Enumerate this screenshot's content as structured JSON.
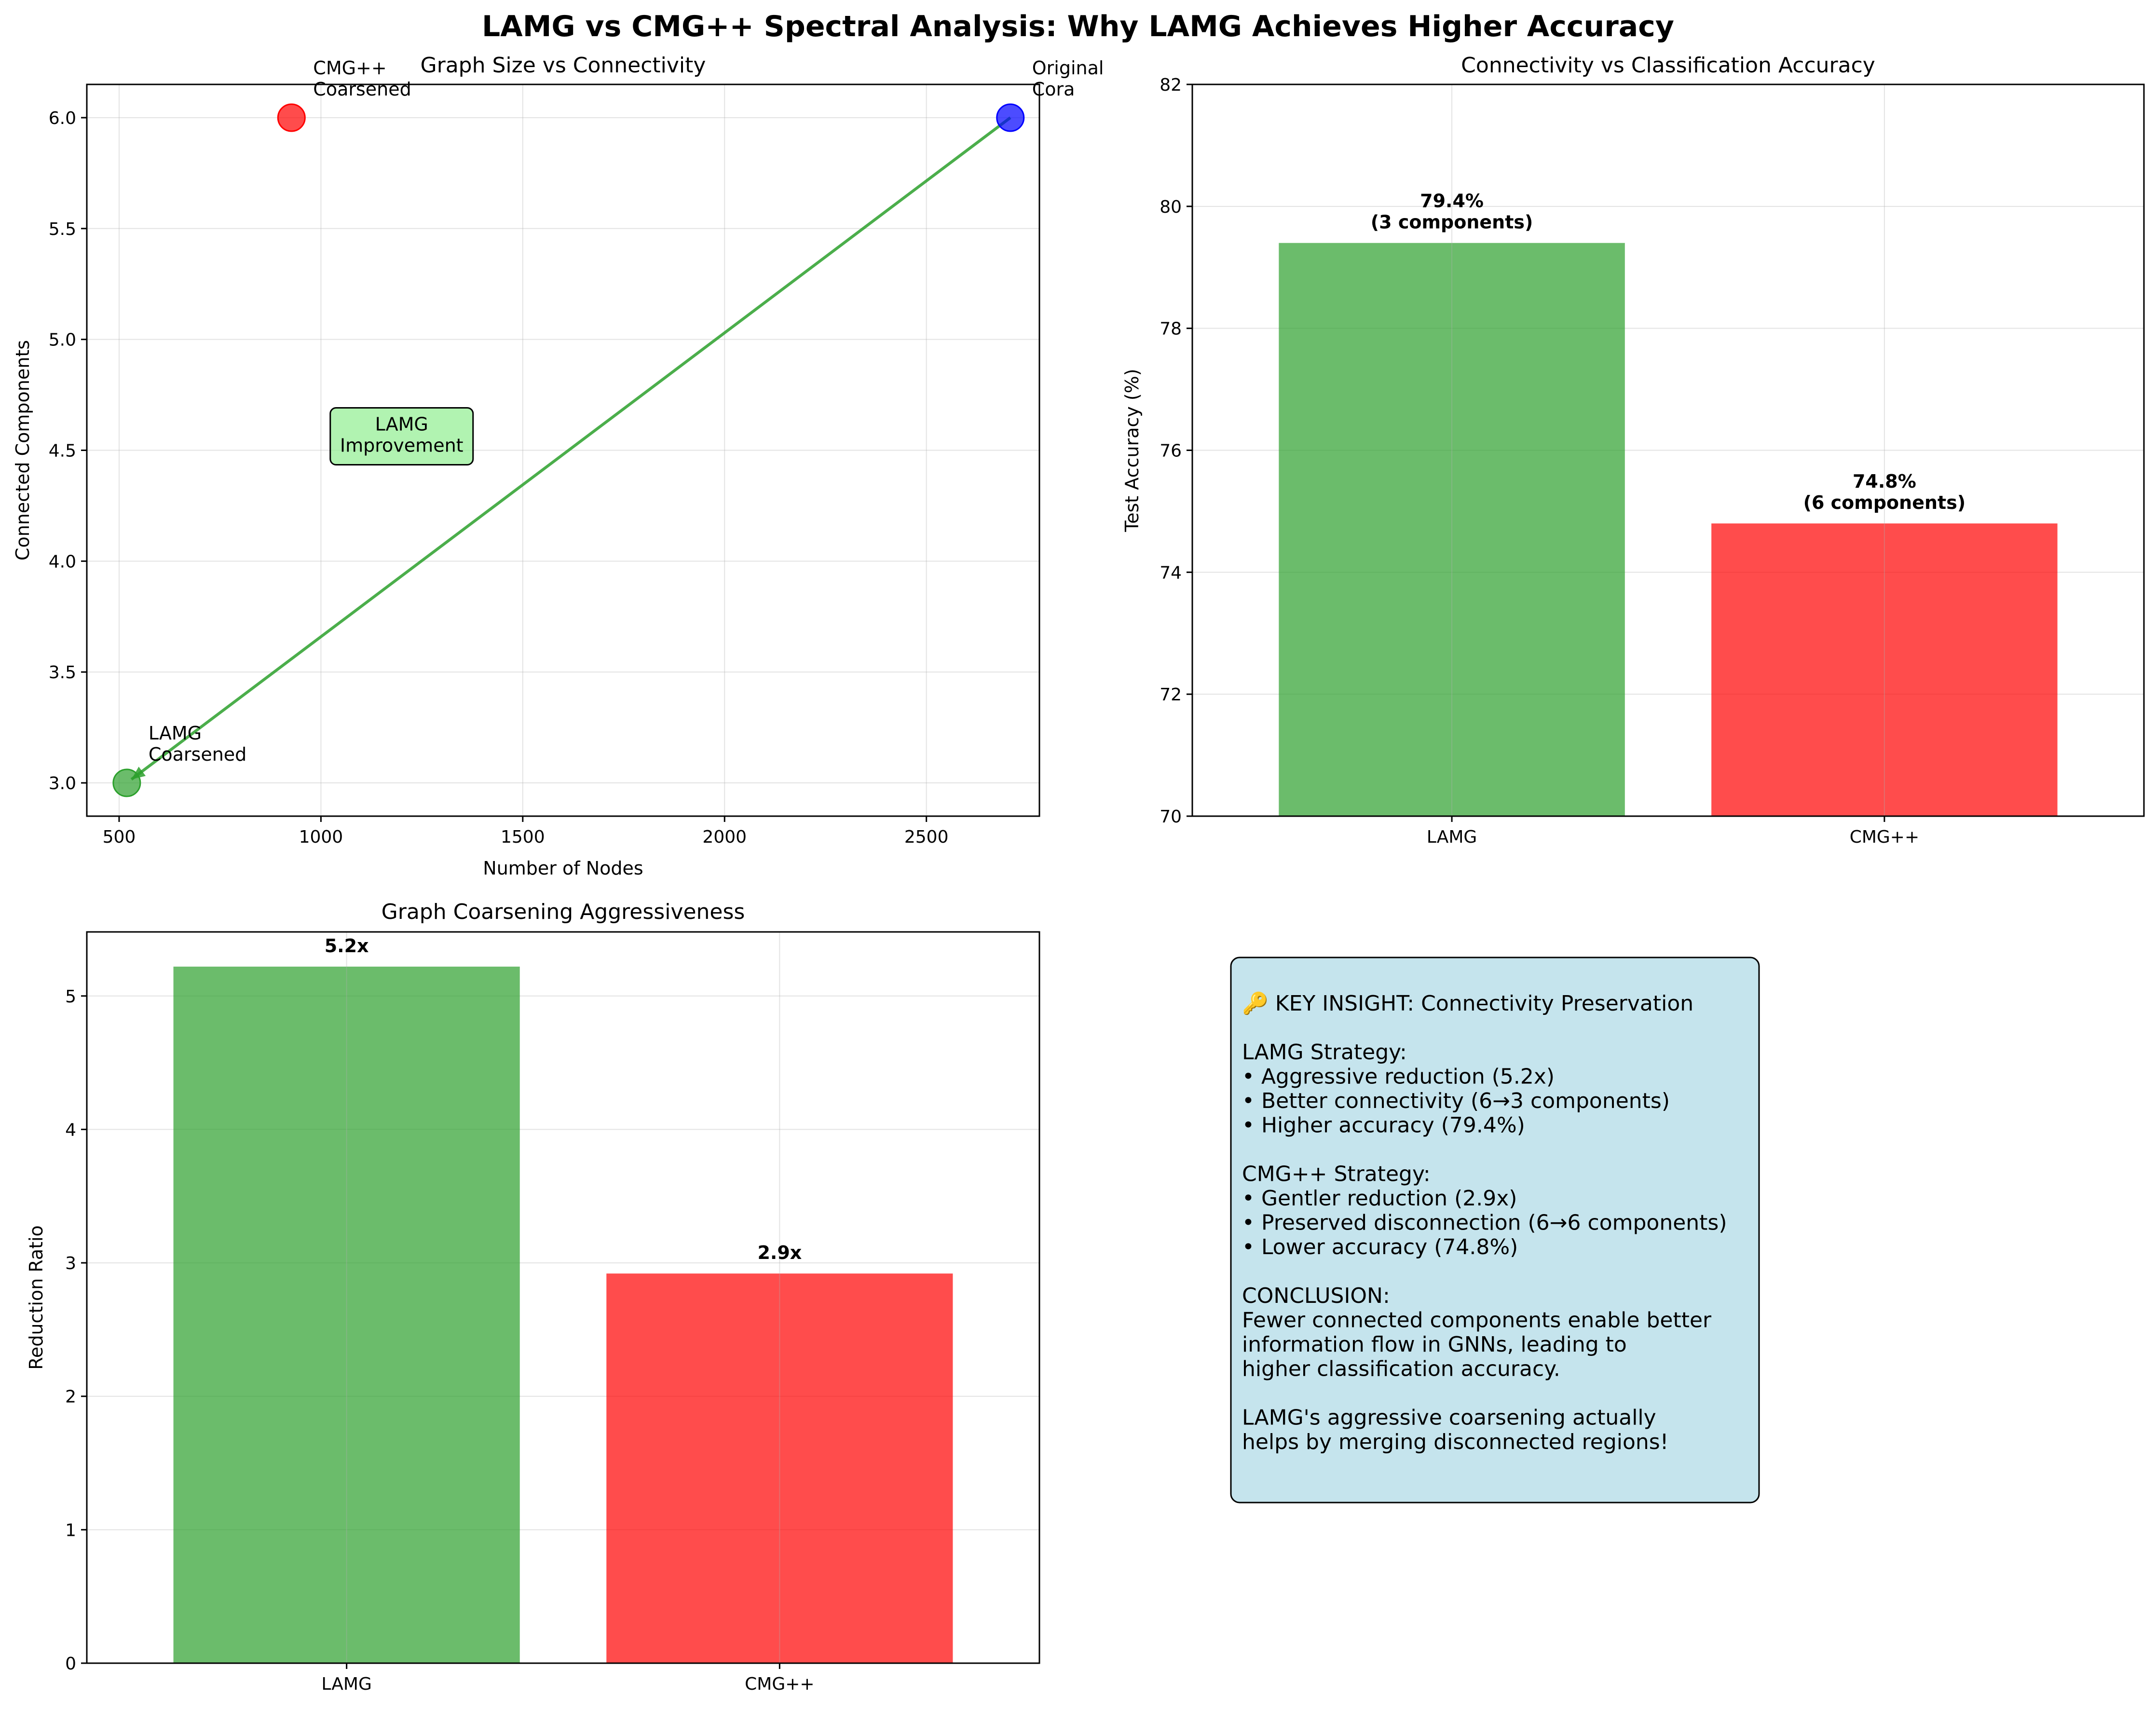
{
  "title": "LAMG vs CMG++ Spectral Analysis: Why LAMG Achieves Higher Accuracy",
  "colors": {
    "lamg": "#2ca02c",
    "cmg": "#ff0000",
    "original": "#0000ff",
    "insight_bg": "#add8e6",
    "annotation_bg": "#90ee90"
  },
  "chart_data": [
    {
      "type": "scatter",
      "title": "Graph Size vs Connectivity",
      "xlabel": "Number of Nodes",
      "ylabel": "Connected Components",
      "xlim": [
        420,
        2780
      ],
      "ylim": [
        2.85,
        6.15
      ],
      "xticks": [
        500,
        1000,
        1500,
        2000,
        2500
      ],
      "yticks": [
        3.0,
        3.5,
        4.0,
        4.5,
        5.0,
        5.5,
        6.0
      ],
      "points": [
        {
          "label": "Original\nCora",
          "x": 2708,
          "y": 6,
          "color": "original"
        },
        {
          "label": "LAMG\nCoarsened",
          "x": 519,
          "y": 3,
          "color": "lamg"
        },
        {
          "label": "CMG++\nCoarsened",
          "x": 927,
          "y": 6,
          "color": "cmg"
        }
      ],
      "arrow": {
        "from": [
          2708,
          6
        ],
        "to": [
          519,
          3
        ]
      },
      "annotation": {
        "text": "LAMG\nImprovement",
        "x": 1200,
        "y": 4.55
      }
    },
    {
      "type": "bar",
      "title": "Connectivity vs Classification Accuracy",
      "xlabel": "",
      "ylabel": "Test Accuracy (%)",
      "categories": [
        "LAMG",
        "CMG++"
      ],
      "values": [
        79.4,
        74.8
      ],
      "labels": [
        "79.4%\n(3 components)",
        "74.8%\n(6 components)"
      ],
      "colors": [
        "lamg",
        "cmg"
      ],
      "ylim": [
        70,
        82
      ],
      "yticks": [
        70,
        72,
        74,
        76,
        78,
        80,
        82
      ]
    },
    {
      "type": "bar",
      "title": "Graph Coarsening Aggressiveness",
      "xlabel": "",
      "ylabel": "Reduction Ratio",
      "categories": [
        "LAMG",
        "CMG++"
      ],
      "values": [
        5.22,
        2.92
      ],
      "labels": [
        "5.2x",
        "2.9x"
      ],
      "colors": [
        "lamg",
        "cmg"
      ],
      "ylim": [
        0,
        5.48
      ],
      "yticks": [
        0,
        1,
        2,
        3,
        4,
        5
      ]
    }
  ],
  "insight": {
    "lines": [
      "🔑 KEY INSIGHT: Connectivity Preservation",
      "",
      "LAMG Strategy:",
      "• Aggressive reduction (5.2x)",
      "• Better connectivity (6→3 components)",
      "• Higher accuracy (79.4%)",
      "",
      "CMG++ Strategy:",
      "• Gentler reduction (2.9x)",
      "• Preserved disconnection (6→6 components)",
      "• Lower accuracy (74.8%)",
      "",
      "CONCLUSION:",
      "Fewer connected components enable better",
      "information flow in GNNs, leading to",
      "higher classification accuracy.",
      "",
      "LAMG's aggressive coarsening actually",
      "helps by merging disconnected regions!"
    ]
  }
}
